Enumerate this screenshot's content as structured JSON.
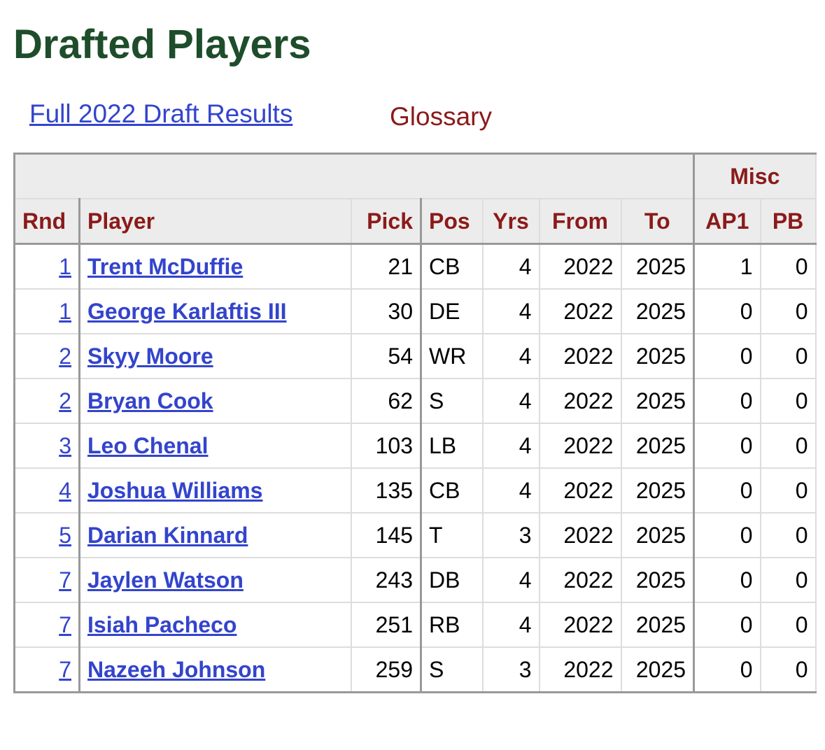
{
  "header": {
    "title": "Drafted Players"
  },
  "links": [
    "Full 2022 Draft Results",
    "Glossary"
  ],
  "table": {
    "group_header": "Misc",
    "columns": [
      "Rnd",
      "Player",
      "Pick",
      "Pos",
      "Yrs",
      "From",
      "To",
      "AP1",
      "PB"
    ],
    "rows": [
      [
        1,
        "Trent McDuffie",
        21,
        "CB",
        4,
        2022,
        2025,
        1,
        0
      ],
      [
        1,
        "George Karlaftis III",
        30,
        "DE",
        4,
        2022,
        2025,
        0,
        0
      ],
      [
        2,
        "Skyy Moore",
        54,
        "WR",
        4,
        2022,
        2025,
        0,
        0
      ],
      [
        2,
        "Bryan Cook",
        62,
        "S",
        4,
        2022,
        2025,
        0,
        0
      ],
      [
        3,
        "Leo Chenal",
        103,
        "LB",
        4,
        2022,
        2025,
        0,
        0
      ],
      [
        4,
        "Joshua Williams",
        135,
        "CB",
        4,
        2022,
        2025,
        0,
        0
      ],
      [
        5,
        "Darian Kinnard",
        145,
        "T",
        3,
        2022,
        2025,
        0,
        0
      ],
      [
        7,
        "Jaylen Watson",
        243,
        "DB",
        4,
        2022,
        2025,
        0,
        0
      ],
      [
        7,
        "Isiah Pacheco",
        251,
        "RB",
        4,
        2022,
        2025,
        0,
        0
      ],
      [
        7,
        "Nazeeh Johnson",
        259,
        "S",
        3,
        2022,
        2025,
        0,
        0
      ]
    ]
  }
}
